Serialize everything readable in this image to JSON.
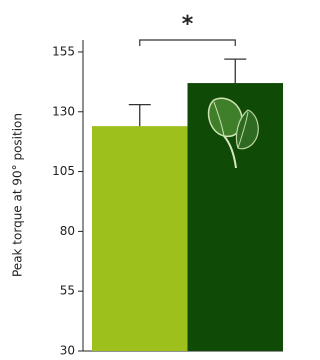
{
  "chart_data": {
    "type": "bar",
    "y_label": "Peak torque at 90° position",
    "values": [
      124,
      142
    ],
    "errors": [
      9,
      10
    ],
    "colors": [
      "#9dc01c",
      "#0f4a07"
    ],
    "ylim": [
      30,
      160
    ],
    "yticks": [
      30,
      55,
      80,
      105,
      130,
      155
    ],
    "annotation": "*"
  }
}
